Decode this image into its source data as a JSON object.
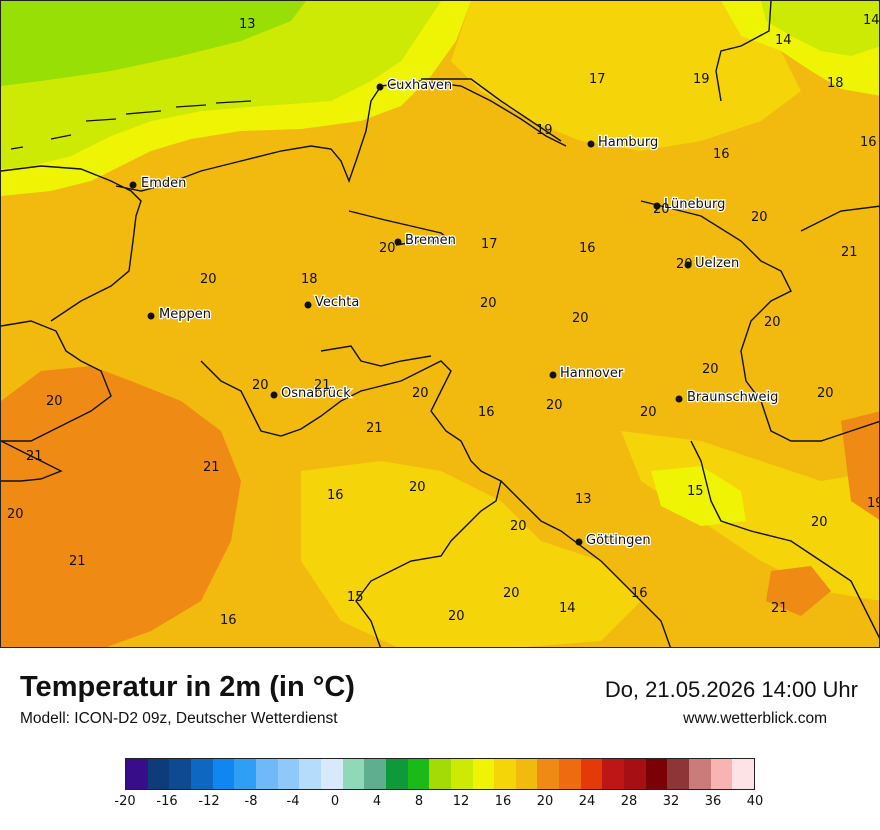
{
  "map": {
    "cities": [
      {
        "id": "cuxhaven",
        "name": "Cuxhaven"
      },
      {
        "id": "hamburg",
        "name": "Hamburg"
      },
      {
        "id": "emden",
        "name": "Emden"
      },
      {
        "id": "lueneburg",
        "name": "Lüneburg"
      },
      {
        "id": "bremen",
        "name": "Bremen"
      },
      {
        "id": "uelzen",
        "name": "Uelzen"
      },
      {
        "id": "meppen",
        "name": "Meppen"
      },
      {
        "id": "vechta",
        "name": "Vechta"
      },
      {
        "id": "hannover",
        "name": "Hannover"
      },
      {
        "id": "osnabrueck",
        "name": "Osnabrück"
      },
      {
        "id": "braunschweig",
        "name": "Braunschweig"
      },
      {
        "id": "goettingen",
        "name": "Göttingen"
      }
    ],
    "values": [
      "13",
      "14",
      "14",
      "17",
      "19",
      "18",
      "19",
      "16",
      "16",
      "20",
      "20",
      "17",
      "16",
      "20",
      "20",
      "18",
      "20",
      "21",
      "20",
      "20",
      "20",
      "20",
      "20",
      "21",
      "20",
      "20",
      "16",
      "20",
      "20",
      "20",
      "21",
      "21",
      "21",
      "19",
      "20",
      "16",
      "20",
      "13",
      "15",
      "20",
      "20",
      "21",
      "15",
      "20",
      "14",
      "16",
      "16",
      "20",
      "21",
      "20"
    ],
    "colors": {
      "land_base": "#f2b90e",
      "warm_patch": "#ef8a14",
      "cool_patch": "#f5d40a",
      "coastal_yellow": "#eff304",
      "sea_green": "#cdea04",
      "sea_far": "#97df05",
      "border_line": "#111111"
    }
  },
  "footer": {
    "title": "Temperatur in 2m (in °C)",
    "subtitle": "Modell: ICON-D2 09z, Deutscher Wetterdienst",
    "datetime": "Do, 21.05.2026 14:00 Uhr",
    "website": "www.wetterblick.com"
  },
  "legend": {
    "colors": [
      "#380d8a",
      "#0e3b7a",
      "#0d4a91",
      "#0e67c1",
      "#0f86f0",
      "#2f9ff6",
      "#6fb9f8",
      "#8fc8fa",
      "#b6dcfb",
      "#d7e9fb",
      "#8fd8b8",
      "#5fae8f",
      "#0e9a3a",
      "#1cba19",
      "#a4da06",
      "#cdea04",
      "#eff304",
      "#f5d40a",
      "#f2b90e",
      "#ef8a14",
      "#ee6c0f",
      "#e43a0a",
      "#be1516",
      "#a60f13",
      "#7a0105",
      "#8e3538",
      "#c97c7a",
      "#f7b4b2",
      "#fde3e6"
    ],
    "ticks": [
      "-20",
      "-16",
      "-12",
      "-8",
      "-4",
      "0",
      "4",
      "8",
      "12",
      "16",
      "20",
      "24",
      "28",
      "32",
      "36",
      "40"
    ]
  }
}
